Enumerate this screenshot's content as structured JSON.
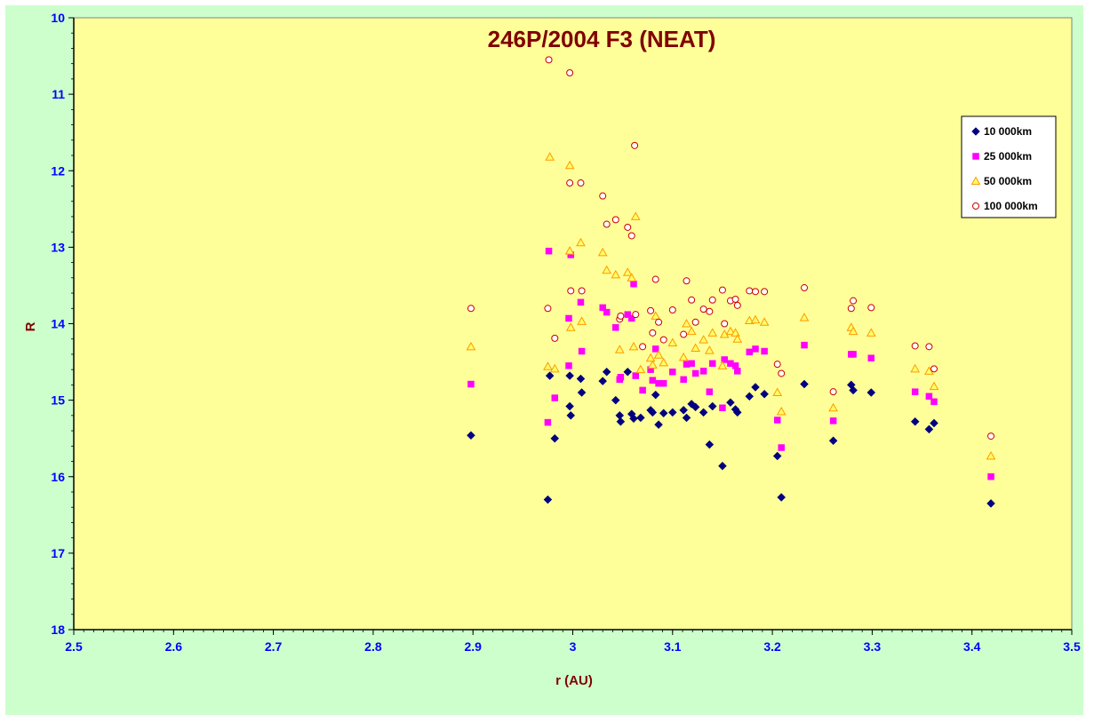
{
  "chart_data": {
    "type": "scatter",
    "title": "246P/2004 F3 (NEAT)",
    "xlabel": "r (AU)",
    "ylabel": "R",
    "xlim": [
      2.5,
      3.5
    ],
    "ylim": [
      10,
      18
    ],
    "y_inverted": true,
    "x_ticks": [
      "2.5",
      "2.6",
      "2.7",
      "2.8",
      "2.9",
      "3",
      "3.1",
      "3.2",
      "3.3",
      "3.4",
      "3.5"
    ],
    "y_ticks": [
      "10",
      "11",
      "12",
      "13",
      "14",
      "15",
      "16",
      "17",
      "18"
    ],
    "grid": false,
    "legend_position": "top-right",
    "plot_background": "#ffff99",
    "chart_background": "#ccffcc",
    "series": [
      {
        "name": "10 000km",
        "marker": "diamond",
        "color": "#000080",
        "points": [
          [
            2.898,
            15.46
          ],
          [
            2.975,
            16.3
          ],
          [
            2.977,
            14.68
          ],
          [
            2.982,
            15.5
          ],
          [
            2.997,
            14.68
          ],
          [
            2.997,
            15.08
          ],
          [
            2.998,
            15.2
          ],
          [
            3.008,
            14.72
          ],
          [
            3.009,
            14.9
          ],
          [
            3.03,
            14.75
          ],
          [
            3.034,
            14.63
          ],
          [
            3.043,
            15.0
          ],
          [
            3.047,
            15.2
          ],
          [
            3.048,
            15.28
          ],
          [
            3.055,
            14.63
          ],
          [
            3.059,
            15.18
          ],
          [
            3.061,
            15.24
          ],
          [
            3.068,
            15.23
          ],
          [
            3.078,
            15.13
          ],
          [
            3.08,
            15.16
          ],
          [
            3.083,
            14.93
          ],
          [
            3.086,
            15.32
          ],
          [
            3.091,
            15.17
          ],
          [
            3.1,
            15.16
          ],
          [
            3.111,
            15.13
          ],
          [
            3.114,
            15.23
          ],
          [
            3.119,
            15.05
          ],
          [
            3.123,
            15.09
          ],
          [
            3.131,
            15.16
          ],
          [
            3.137,
            15.58
          ],
          [
            3.14,
            15.08
          ],
          [
            3.15,
            15.86
          ],
          [
            3.158,
            15.03
          ],
          [
            3.163,
            15.12
          ],
          [
            3.165,
            15.16
          ],
          [
            3.177,
            14.95
          ],
          [
            3.183,
            14.83
          ],
          [
            3.192,
            14.92
          ],
          [
            3.205,
            15.73
          ],
          [
            3.209,
            16.27
          ],
          [
            3.232,
            14.79
          ],
          [
            3.261,
            15.53
          ],
          [
            3.279,
            14.8
          ],
          [
            3.281,
            14.87
          ],
          [
            3.299,
            14.9
          ],
          [
            3.343,
            15.28
          ],
          [
            3.357,
            15.38
          ],
          [
            3.362,
            15.3
          ],
          [
            3.419,
            16.35
          ]
        ]
      },
      {
        "name": "25 000km",
        "marker": "square",
        "color": "#ff00ff",
        "points": [
          [
            2.898,
            14.79
          ],
          [
            2.975,
            15.29
          ],
          [
            2.976,
            13.05
          ],
          [
            2.982,
            14.97
          ],
          [
            2.996,
            14.55
          ],
          [
            2.996,
            13.93
          ],
          [
            2.998,
            13.1
          ],
          [
            3.008,
            13.72
          ],
          [
            3.009,
            14.36
          ],
          [
            3.03,
            13.79
          ],
          [
            3.034,
            13.85
          ],
          [
            3.043,
            14.05
          ],
          [
            3.047,
            14.73
          ],
          [
            3.048,
            14.7
          ],
          [
            3.055,
            13.88
          ],
          [
            3.059,
            13.93
          ],
          [
            3.061,
            13.48
          ],
          [
            3.063,
            14.68
          ],
          [
            3.07,
            14.87
          ],
          [
            3.078,
            14.6
          ],
          [
            3.08,
            14.74
          ],
          [
            3.083,
            14.33
          ],
          [
            3.086,
            14.78
          ],
          [
            3.091,
            14.78
          ],
          [
            3.1,
            14.63
          ],
          [
            3.111,
            14.73
          ],
          [
            3.114,
            14.53
          ],
          [
            3.119,
            14.52
          ],
          [
            3.123,
            14.65
          ],
          [
            3.131,
            14.62
          ],
          [
            3.137,
            14.89
          ],
          [
            3.14,
            14.52
          ],
          [
            3.15,
            15.1
          ],
          [
            3.152,
            14.47
          ],
          [
            3.158,
            14.52
          ],
          [
            3.163,
            14.55
          ],
          [
            3.165,
            14.62
          ],
          [
            3.177,
            14.37
          ],
          [
            3.183,
            14.33
          ],
          [
            3.192,
            14.36
          ],
          [
            3.205,
            15.26
          ],
          [
            3.209,
            15.62
          ],
          [
            3.232,
            14.28
          ],
          [
            3.261,
            15.27
          ],
          [
            3.279,
            14.4
          ],
          [
            3.281,
            14.4
          ],
          [
            3.299,
            14.45
          ],
          [
            3.343,
            14.89
          ],
          [
            3.357,
            14.95
          ],
          [
            3.362,
            15.02
          ],
          [
            3.419,
            16.0
          ]
        ]
      },
      {
        "name": "50 000km",
        "marker": "triangle",
        "color": "#ff9900",
        "points": [
          [
            2.898,
            14.3
          ],
          [
            2.975,
            14.56
          ],
          [
            2.977,
            11.82
          ],
          [
            2.982,
            14.59
          ],
          [
            2.997,
            11.93
          ],
          [
            2.997,
            13.05
          ],
          [
            2.998,
            14.05
          ],
          [
            3.008,
            12.94
          ],
          [
            3.009,
            13.97
          ],
          [
            3.03,
            13.07
          ],
          [
            3.034,
            13.3
          ],
          [
            3.043,
            13.36
          ],
          [
            3.047,
            14.34
          ],
          [
            3.055,
            13.33
          ],
          [
            3.059,
            13.4
          ],
          [
            3.061,
            14.3
          ],
          [
            3.063,
            12.6
          ],
          [
            3.068,
            14.6
          ],
          [
            3.078,
            14.45
          ],
          [
            3.08,
            14.54
          ],
          [
            3.083,
            13.9
          ],
          [
            3.086,
            14.41
          ],
          [
            3.091,
            14.51
          ],
          [
            3.1,
            14.25
          ],
          [
            3.111,
            14.44
          ],
          [
            3.114,
            14.0
          ],
          [
            3.119,
            14.1
          ],
          [
            3.123,
            14.32
          ],
          [
            3.131,
            14.21
          ],
          [
            3.137,
            14.35
          ],
          [
            3.14,
            14.12
          ],
          [
            3.15,
            14.55
          ],
          [
            3.152,
            14.14
          ],
          [
            3.158,
            14.1
          ],
          [
            3.163,
            14.12
          ],
          [
            3.165,
            14.2
          ],
          [
            3.177,
            13.96
          ],
          [
            3.183,
            13.95
          ],
          [
            3.192,
            13.98
          ],
          [
            3.205,
            14.9
          ],
          [
            3.209,
            15.15
          ],
          [
            3.232,
            13.92
          ],
          [
            3.261,
            15.1
          ],
          [
            3.279,
            14.05
          ],
          [
            3.281,
            14.1
          ],
          [
            3.299,
            14.12
          ],
          [
            3.343,
            14.59
          ],
          [
            3.357,
            14.62
          ],
          [
            3.362,
            14.82
          ],
          [
            3.419,
            15.73
          ]
        ]
      },
      {
        "name": "100 000km",
        "marker": "circle",
        "color": "#cc0000",
        "points": [
          [
            2.898,
            13.8
          ],
          [
            2.975,
            13.8
          ],
          [
            2.976,
            10.55
          ],
          [
            2.982,
            14.19
          ],
          [
            2.997,
            10.72
          ],
          [
            2.997,
            12.16
          ],
          [
            2.998,
            13.57
          ],
          [
            3.008,
            12.16
          ],
          [
            3.009,
            13.57
          ],
          [
            3.03,
            12.33
          ],
          [
            3.034,
            12.7
          ],
          [
            3.043,
            12.64
          ],
          [
            3.047,
            13.94
          ],
          [
            3.048,
            13.9
          ],
          [
            3.055,
            12.74
          ],
          [
            3.059,
            12.85
          ],
          [
            3.062,
            11.67
          ],
          [
            3.063,
            13.88
          ],
          [
            3.07,
            14.3
          ],
          [
            3.078,
            13.83
          ],
          [
            3.08,
            14.12
          ],
          [
            3.083,
            13.42
          ],
          [
            3.086,
            13.98
          ],
          [
            3.091,
            14.21
          ],
          [
            3.1,
            13.82
          ],
          [
            3.111,
            14.14
          ],
          [
            3.114,
            13.44
          ],
          [
            3.119,
            13.69
          ],
          [
            3.123,
            13.98
          ],
          [
            3.131,
            13.81
          ],
          [
            3.137,
            13.84
          ],
          [
            3.14,
            13.69
          ],
          [
            3.15,
            13.56
          ],
          [
            3.152,
            14.0
          ],
          [
            3.158,
            13.7
          ],
          [
            3.163,
            13.68
          ],
          [
            3.165,
            13.76
          ],
          [
            3.177,
            13.57
          ],
          [
            3.183,
            13.58
          ],
          [
            3.192,
            13.58
          ],
          [
            3.205,
            14.53
          ],
          [
            3.209,
            14.65
          ],
          [
            3.232,
            13.53
          ],
          [
            3.261,
            14.89
          ],
          [
            3.279,
            13.8
          ],
          [
            3.281,
            13.7
          ],
          [
            3.299,
            13.79
          ],
          [
            3.343,
            14.29
          ],
          [
            3.357,
            14.3
          ],
          [
            3.362,
            14.59
          ],
          [
            3.419,
            15.47
          ]
        ]
      }
    ]
  }
}
